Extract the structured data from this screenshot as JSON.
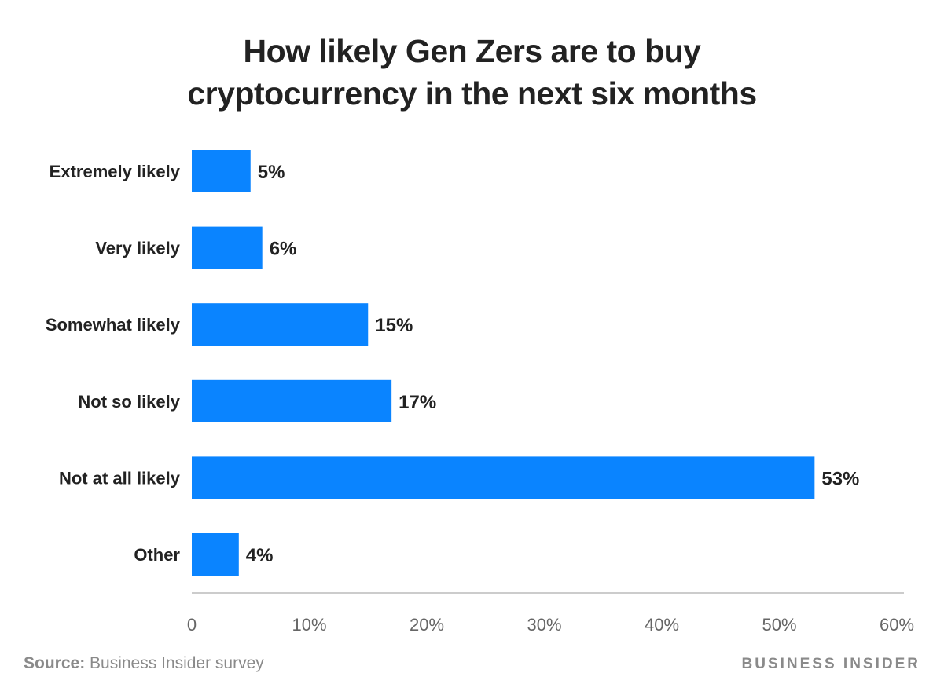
{
  "title_line1": "How likely Gen Zers are to buy",
  "title_line2": "cryptocurrency in the next six months",
  "source_label": "Source:",
  "source_text": " Business Insider survey",
  "brand": "BUSINESS INSIDER",
  "colors": {
    "bar": "#0a84ff",
    "axis": "#cccccc",
    "label": "#222222",
    "tick": "#666666"
  },
  "chart_data": {
    "type": "bar",
    "orientation": "horizontal",
    "categories": [
      "Extremely likely",
      "Very likely",
      "Somewhat likely",
      "Not so likely",
      "Not at all likely",
      "Other"
    ],
    "values": [
      5,
      6,
      15,
      17,
      53,
      4
    ],
    "value_labels": [
      "5%",
      "6%",
      "15%",
      "17%",
      "53%",
      "4%"
    ],
    "xlim": [
      0,
      60
    ],
    "xticks": [
      0,
      10,
      20,
      30,
      40,
      50,
      60
    ],
    "xtick_labels": [
      "0",
      "10%",
      "20%",
      "30%",
      "40%",
      "50%",
      "60%"
    ],
    "grid": false
  }
}
